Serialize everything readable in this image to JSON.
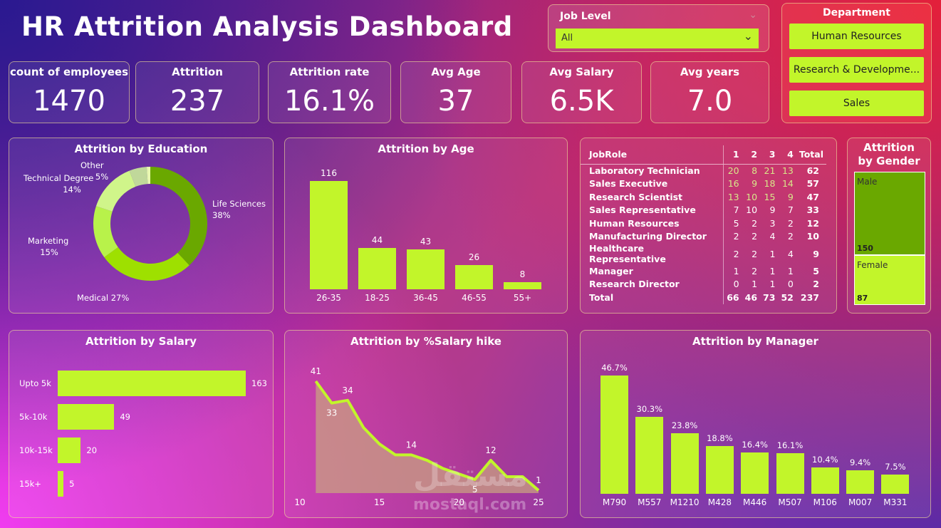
{
  "title": "HR Attrition Analysis Dashboard",
  "job_level": {
    "label": "Job Level",
    "value": "All"
  },
  "department": {
    "label": "Department",
    "options": [
      "Human Resources",
      "Research & Developme...",
      "Sales"
    ]
  },
  "kpis": [
    {
      "label": "count of employees",
      "value": "1470"
    },
    {
      "label": "Attrition",
      "value": "237"
    },
    {
      "label": "Attrition rate",
      "value": "16.1%"
    },
    {
      "label": "Avg Age",
      "value": "37"
    },
    {
      "label": "Avg Salary",
      "value": "6.5K"
    },
    {
      "label": "Avg years",
      "value": "7.0"
    }
  ],
  "colors": {
    "accent": "#c2f52a"
  },
  "chart_data": [
    {
      "id": "education",
      "type": "pie",
      "title": "Attrition by Education",
      "donut": true,
      "slices": [
        {
          "label": "Life Sciences",
          "pct": "38%",
          "value": 38,
          "color": "#6aa800"
        },
        {
          "label": "Medical",
          "pct": "27%",
          "value": 27,
          "color": "#9ee000"
        },
        {
          "label": "Marketing",
          "pct": "15%",
          "value": 15,
          "color": "#b8f24a"
        },
        {
          "label": "Technical Degree",
          "pct": "14%",
          "value": 14,
          "color": "#d0f58a"
        },
        {
          "label": "Other",
          "pct": "5%",
          "value": 5,
          "color": "#c0d89a"
        },
        {
          "label": "",
          "pct": "",
          "value": 1,
          "color": "#e8f8b0"
        }
      ]
    },
    {
      "id": "age",
      "type": "bar",
      "title": "Attrition by Age",
      "categories": [
        "26-35",
        "18-25",
        "36-45",
        "46-55",
        "55+"
      ],
      "values": [
        116,
        44,
        43,
        26,
        8
      ]
    },
    {
      "id": "salary",
      "type": "bar",
      "orientation": "horizontal",
      "title": "Attrition by Salary",
      "categories": [
        "Upto 5k",
        "5k-10k",
        "10k-15k",
        "15k+"
      ],
      "values": [
        163,
        49,
        20,
        5
      ]
    },
    {
      "id": "hike",
      "type": "area",
      "title": "Attrition by %Salary hike",
      "x": [
        11,
        12,
        13,
        14,
        15,
        16,
        17,
        18,
        19,
        20,
        21,
        22,
        23,
        24,
        25
      ],
      "y": [
        41,
        33,
        34,
        24,
        18,
        14,
        14,
        12,
        9,
        7,
        5,
        12,
        6,
        6,
        1
      ],
      "labeled": [
        0,
        1,
        2,
        6,
        10,
        11,
        14
      ],
      "xticks": [
        10,
        15,
        20,
        25
      ],
      "xlim": [
        10,
        25
      ]
    },
    {
      "id": "manager",
      "type": "bar",
      "title": "Attrition by Manager",
      "categories": [
        "M790",
        "M557",
        "M1210",
        "M428",
        "M446",
        "M507",
        "M106",
        "M007",
        "M331"
      ],
      "values": [
        46.7,
        30.3,
        23.8,
        18.8,
        16.4,
        16.1,
        10.4,
        9.4,
        7.5
      ],
      "labels": [
        "46.7%",
        "30.3%",
        "23.8%",
        "18.8%",
        "16.4%",
        "16.1%",
        "10.4%",
        "9.4%",
        "7.5%"
      ]
    },
    {
      "id": "gender",
      "type": "treemap",
      "title": "Attrition by Gender",
      "items": [
        {
          "label": "Male",
          "value": 150
        },
        {
          "label": "Female",
          "value": 87
        }
      ]
    },
    {
      "id": "jobrole",
      "type": "table",
      "headers": [
        "JobRole",
        "1",
        "2",
        "3",
        "4",
        "Total"
      ],
      "rows": [
        [
          "Laboratory Technician",
          20,
          8,
          21,
          13,
          62
        ],
        [
          "Sales Executive",
          16,
          9,
          18,
          14,
          57
        ],
        [
          "Research Scientist",
          13,
          10,
          15,
          9,
          47
        ],
        [
          "Sales Representative",
          7,
          10,
          9,
          7,
          33
        ],
        [
          "Human Resources",
          5,
          2,
          3,
          2,
          12
        ],
        [
          "Manufacturing Director",
          2,
          2,
          4,
          2,
          10
        ],
        [
          "Healthcare Representative",
          2,
          2,
          1,
          4,
          9
        ],
        [
          "Manager",
          1,
          2,
          1,
          1,
          5
        ],
        [
          "Research Director",
          0,
          1,
          1,
          0,
          2
        ]
      ],
      "total": [
        "Total",
        66,
        46,
        73,
        52,
        237
      ]
    }
  ],
  "watermark": {
    "arabic": "مستقل",
    "latin": "mostaql.com"
  }
}
